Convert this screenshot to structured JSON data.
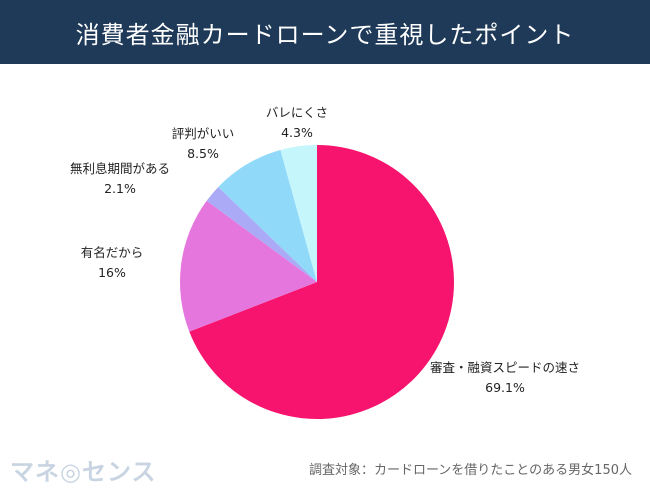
{
  "header": {
    "title": "消費者金融カードローンで重視したポイント"
  },
  "chart_data": {
    "type": "pie",
    "title": "消費者金融カードローンで重視したポイント",
    "start": "top",
    "direction": "clockwise",
    "slices": [
      {
        "label": "審査・融資スピードの速さ",
        "value": 69.1,
        "display": "69.1%",
        "color": "#f6146e"
      },
      {
        "label": "有名だから",
        "value": 16,
        "display": "16%",
        "color": "#e576dd"
      },
      {
        "label": "無利息期間がある",
        "value": 2.1,
        "display": "2.1%",
        "color": "#aaaaf6"
      },
      {
        "label": "評判がいい",
        "value": 8.5,
        "display": "8.5%",
        "color": "#90d9f9"
      },
      {
        "label": "バレにくさ",
        "value": 4.3,
        "display": "4.3%",
        "color": "#c4f6fc"
      }
    ]
  },
  "footer": {
    "logo": "マネ◎センス",
    "note": "調査対象：カードローンを借りたことのある男女150人"
  }
}
